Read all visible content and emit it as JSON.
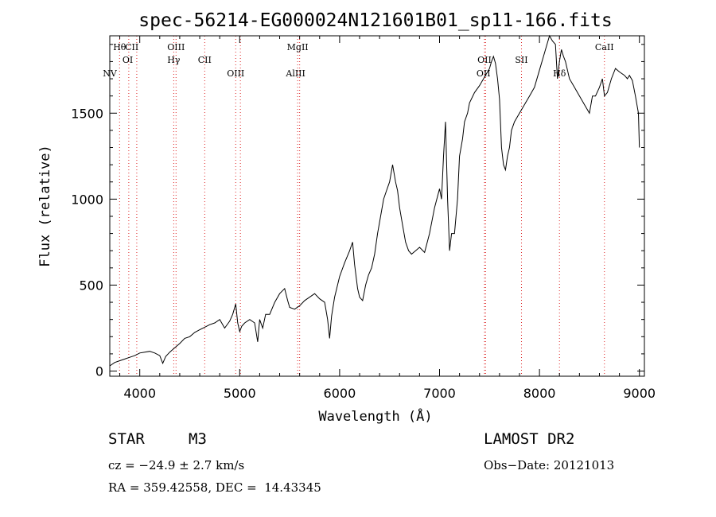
{
  "chart_data": {
    "type": "line",
    "title": "spec-56214-EG000024N121601B01_sp11-166.fits",
    "xlabel": "Wavelength (Å)",
    "ylabel": "Flux (relative)",
    "xlim": [
      3700,
      9050
    ],
    "ylim": [
      -30,
      1950
    ],
    "xticks": [
      4000,
      5000,
      6000,
      7000,
      8000,
      9000
    ],
    "yticks": [
      0,
      500,
      1000,
      1500
    ],
    "grid": false,
    "series": [
      {
        "x": [
          3700,
          3750,
          3800,
          3850,
          3900,
          3950,
          4000,
          4050,
          4100,
          4150,
          4200,
          4230,
          4260,
          4300,
          4350,
          4400,
          4450,
          4500,
          4550,
          4600,
          4650,
          4700,
          4750,
          4800,
          4850,
          4900,
          4930,
          4960,
          4980,
          5000,
          5020,
          5050,
          5100,
          5150,
          5180,
          5200,
          5230,
          5260,
          5300,
          5350,
          5400,
          5450,
          5480,
          5500,
          5550,
          5600,
          5650,
          5700,
          5750,
          5800,
          5850,
          5880,
          5900,
          5920,
          5950,
          6000,
          6050,
          6100,
          6130,
          6150,
          6180,
          6200,
          6230,
          6260,
          6290,
          6320,
          6350,
          6380,
          6410,
          6440,
          6470,
          6500,
          6530,
          6560,
          6580,
          6600,
          6630,
          6660,
          6690,
          6720,
          6760,
          6800,
          6850,
          6900,
          6950,
          7000,
          7020,
          7040,
          7060,
          7080,
          7100,
          7120,
          7150,
          7180,
          7200,
          7230,
          7250,
          7280,
          7300,
          7350,
          7400,
          7440,
          7460,
          7480,
          7500,
          7520,
          7540,
          7560,
          7580,
          7600,
          7620,
          7640,
          7660,
          7680,
          7700,
          7720,
          7750,
          7800,
          7850,
          7900,
          7950,
          8000,
          8050,
          8100,
          8130,
          8160,
          8180,
          8200,
          8220,
          8240,
          8260,
          8300,
          8350,
          8400,
          8450,
          8500,
          8530,
          8560,
          8600,
          8630,
          8650,
          8680,
          8720,
          8760,
          8800,
          8850,
          8880,
          8900,
          8930,
          8960,
          8990,
          9000
        ],
        "values": [
          30,
          50,
          60,
          70,
          80,
          90,
          105,
          110,
          115,
          105,
          90,
          45,
          85,
          110,
          135,
          160,
          190,
          200,
          225,
          240,
          255,
          270,
          280,
          300,
          250,
          290,
          330,
          390,
          280,
          230,
          260,
          280,
          300,
          280,
          170,
          300,
          250,
          330,
          330,
          400,
          450,
          480,
          410,
          370,
          360,
          380,
          410,
          430,
          450,
          420,
          400,
          300,
          190,
          320,
          430,
          550,
          630,
          700,
          750,
          620,
          480,
          430,
          410,
          500,
          560,
          600,
          680,
          800,
          900,
          1000,
          1050,
          1100,
          1200,
          1100,
          1050,
          950,
          850,
          750,
          700,
          680,
          700,
          720,
          690,
          800,
          950,
          1060,
          1000,
          1250,
          1450,
          1000,
          700,
          800,
          800,
          1000,
          1250,
          1350,
          1450,
          1500,
          1560,
          1620,
          1660,
          1700,
          1720,
          1740,
          1760,
          1800,
          1830,
          1790,
          1700,
          1580,
          1300,
          1200,
          1170,
          1250,
          1300,
          1400,
          1450,
          1500,
          1550,
          1600,
          1650,
          1750,
          1850,
          1950,
          1920,
          1900,
          1700,
          1800,
          1870,
          1830,
          1800,
          1700,
          1650,
          1600,
          1550,
          1500,
          1600,
          1600,
          1650,
          1700,
          1600,
          1620,
          1700,
          1760,
          1740,
          1720,
          1700,
          1720,
          1690,
          1600,
          1500,
          1300
        ]
      }
    ],
    "annotations": [
      {
        "label": "NV",
        "wavelength": 3700,
        "row": 3
      },
      {
        "label": "Hθ",
        "wavelength": 3798,
        "row": 1
      },
      {
        "label": "OI",
        "wavelength": 3880,
        "row": 2
      },
      {
        "label": "CII",
        "wavelength": 3920,
        "row": 1
      },
      {
        "label": "OIII",
        "wavelength": 4363,
        "row": 1
      },
      {
        "label": "Hγ",
        "wavelength": 4340,
        "row": 2
      },
      {
        "label": "CII",
        "wavelength": 4650,
        "row": 2
      },
      {
        "label": "OIII",
        "wavelength": 4960,
        "row": 3
      },
      {
        "label": "MgII",
        "wavelength": 5580,
        "row": 1
      },
      {
        "label": "AlIII",
        "wavelength": 5560,
        "row": 3
      },
      {
        "label": "OII",
        "wavelength": 7450,
        "row": 2
      },
      {
        "label": "OII",
        "wavelength": 7440,
        "row": 3
      },
      {
        "label": "SII",
        "wavelength": 7820,
        "row": 2
      },
      {
        "label": "Hδ",
        "wavelength": 8200,
        "row": 3
      },
      {
        "label": "CaII",
        "wavelength": 8650,
        "row": 1
      }
    ],
    "line_markers": [
      3798,
      3890,
      3970,
      4340,
      4363,
      4650,
      4960,
      5007,
      5580,
      5600,
      7450,
      7460,
      7820,
      8200,
      8650
    ]
  },
  "info": {
    "star_label": "STAR",
    "spectral_type": "M3",
    "survey": "LAMOST DR2",
    "cz": "cz = −24.9 ± 2.7 km/s",
    "obs_date": "Obs−Date: 20121013",
    "coords": "RA = 359.42558, DEC =  14.43345"
  }
}
